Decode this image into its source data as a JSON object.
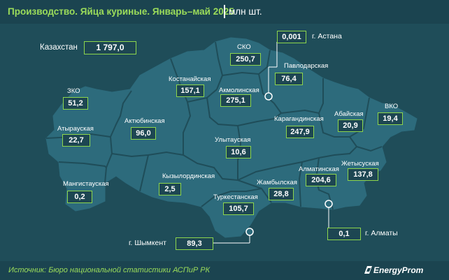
{
  "header": {
    "title": "Производство. Яйца куриные. Январь–май 2025",
    "unit": "млн шт."
  },
  "footer": {
    "source": "Источник: Бюро национальной статистики АСПиР РК",
    "logo": "EnergyProm"
  },
  "colors": {
    "background": "#1f4d59",
    "map_fill": "#2d6b7c",
    "border": "#1f4d59",
    "accent": "#9bdc5a",
    "box_border": "#8dd64d"
  },
  "country": {
    "name": "Казахстан",
    "value": "1 797,0"
  },
  "regions": [
    {
      "key": "sko",
      "name": "СКО",
      "value": "250,7"
    },
    {
      "key": "pavlodar",
      "name": "Павлодарская",
      "value": "76,4"
    },
    {
      "key": "kostanay",
      "name": "Костанайская",
      "value": "157,1"
    },
    {
      "key": "akmola",
      "name": "Акмолинская",
      "value": "275,1"
    },
    {
      "key": "zko",
      "name": "ЗКО",
      "value": "51,2"
    },
    {
      "key": "aktobe",
      "name": "Актюбинская",
      "value": "96,0"
    },
    {
      "key": "atyrau",
      "name": "Атырауская",
      "value": "22,7"
    },
    {
      "key": "karaganda",
      "name": "Карагандинская",
      "value": "247,9"
    },
    {
      "key": "abay",
      "name": "Абайская",
      "value": "20,9"
    },
    {
      "key": "vko",
      "name": "ВКО",
      "value": "19,4"
    },
    {
      "key": "ulytau",
      "name": "Улытауская",
      "value": "10,6"
    },
    {
      "key": "zhetysu",
      "name": "Жетысуская",
      "value": "137,8"
    },
    {
      "key": "almaty_reg",
      "name": "Алматинская",
      "value": "204,6"
    },
    {
      "key": "mangystau",
      "name": "Мангистауская",
      "value": "0,2"
    },
    {
      "key": "kyzylorda",
      "name": "Кызылординская",
      "value": "2,5"
    },
    {
      "key": "zhambyl",
      "name": "Жамбылская",
      "value": "28,8"
    },
    {
      "key": "turkestan",
      "name": "Туркестанская",
      "value": "105,7"
    }
  ],
  "cities": [
    {
      "key": "astana",
      "name": "г. Астана",
      "value": "0,001"
    },
    {
      "key": "almaty",
      "name": "г. Алматы",
      "value": "0,1"
    },
    {
      "key": "shymkent",
      "name": "г. Шымкент",
      "value": "89,3"
    }
  ]
}
